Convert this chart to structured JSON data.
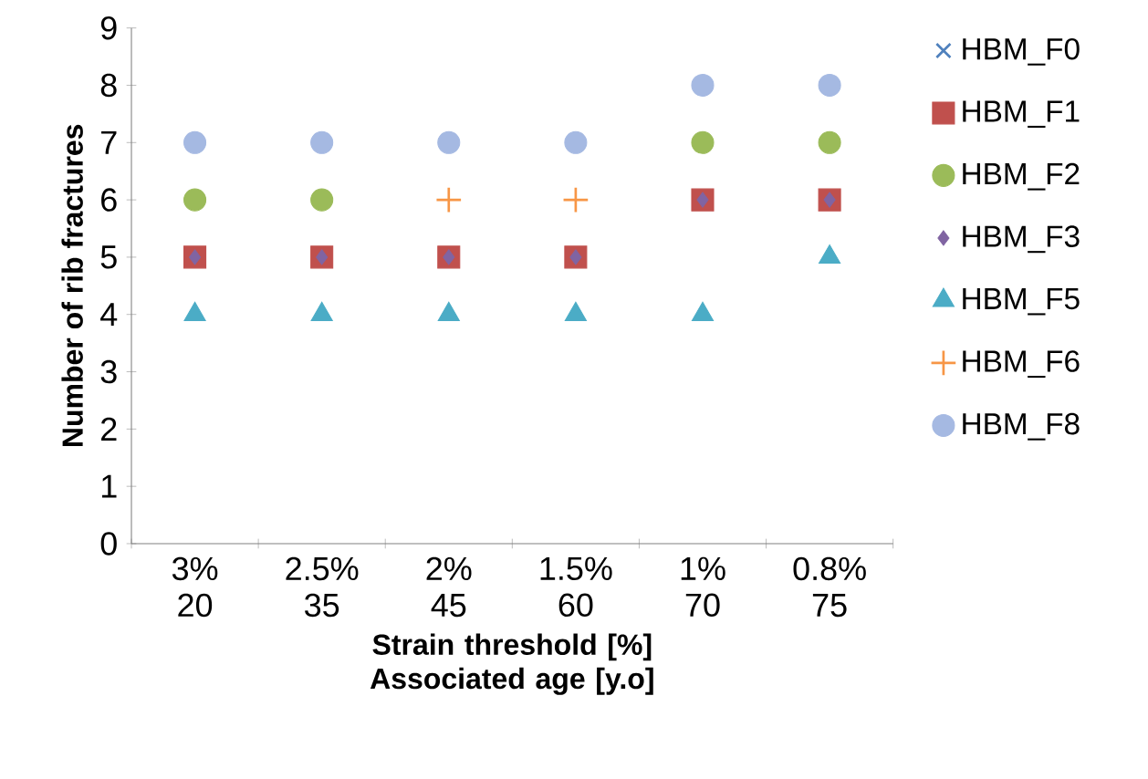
{
  "chart_data": {
    "type": "scatter",
    "categories": [
      "3% 20",
      "2.5% 35",
      "2% 45",
      "1.5% 60",
      "1% 70",
      "0.8% 75"
    ],
    "xlabel": "Strain threshold [%] Associated age [y.o]",
    "ylabel": "Number of rib fractures",
    "ylim": [
      0,
      9
    ],
    "yticks": [
      0,
      1,
      2,
      3,
      4,
      5,
      6,
      7,
      8,
      9
    ],
    "legend": "right",
    "series": [
      {
        "name": "HBM_F0",
        "color": "#4f81bd",
        "marker": "cross",
        "values": [
          null,
          null,
          null,
          null,
          null,
          null
        ]
      },
      {
        "name": "HBM_F1",
        "color": "#c0504d",
        "marker": "square",
        "values": [
          5,
          5,
          5,
          5,
          6,
          6
        ]
      },
      {
        "name": "HBM_F2",
        "color": "#9bbb59",
        "marker": "circle",
        "values": [
          6,
          6,
          null,
          null,
          7,
          7
        ]
      },
      {
        "name": "HBM_F3",
        "color": "#8064a2",
        "marker": "diamond",
        "values": [
          5,
          5,
          5,
          5,
          6,
          6
        ]
      },
      {
        "name": "HBM_F5",
        "color": "#4bacc6",
        "marker": "triangle",
        "values": [
          4,
          4,
          4,
          4,
          4,
          5
        ]
      },
      {
        "name": "HBM_F6",
        "color": "#f79646",
        "marker": "plus",
        "values": [
          null,
          null,
          6,
          6,
          null,
          null
        ]
      },
      {
        "name": "HBM_F8",
        "color": "#a5b9e2",
        "marker": "circle",
        "values": [
          7,
          7,
          7,
          7,
          8,
          8
        ]
      }
    ]
  }
}
